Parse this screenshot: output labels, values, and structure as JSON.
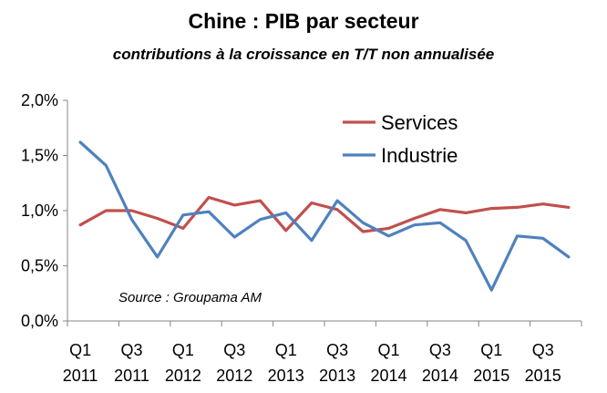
{
  "chart_data": {
    "type": "line",
    "title": "Chine : PIB par secteur",
    "subtitle": "contributions à la croissance en T/T non annualisée",
    "annotation": "Source : Groupama AM",
    "ylim": [
      0,
      2.0
    ],
    "yticks": [
      {
        "value": 0.0,
        "label": "0,0%"
      },
      {
        "value": 0.5,
        "label": "0,5%"
      },
      {
        "value": 1.0,
        "label": "1,0%"
      },
      {
        "value": 1.5,
        "label": "1,5%"
      },
      {
        "value": 2.0,
        "label": "2,0%"
      }
    ],
    "x": [
      "Q1 2011",
      "Q2 2011",
      "Q3 2011",
      "Q4 2011",
      "Q1 2012",
      "Q2 2012",
      "Q3 2012",
      "Q4 2012",
      "Q1 2013",
      "Q2 2013",
      "Q3 2013",
      "Q4 2013",
      "Q1 2014",
      "Q2 2014",
      "Q3 2014",
      "Q4 2014",
      "Q1 2015",
      "Q2 2015",
      "Q3 2015",
      "Q4 2015"
    ],
    "xtick_labels": [
      {
        "index": 0,
        "top": "Q1",
        "bottom": "2011"
      },
      {
        "index": 2,
        "top": "Q3",
        "bottom": "2011"
      },
      {
        "index": 4,
        "top": "Q1",
        "bottom": "2012"
      },
      {
        "index": 6,
        "top": "Q3",
        "bottom": "2012"
      },
      {
        "index": 8,
        "top": "Q1",
        "bottom": "2013"
      },
      {
        "index": 10,
        "top": "Q3",
        "bottom": "2013"
      },
      {
        "index": 12,
        "top": "Q1",
        "bottom": "2014"
      },
      {
        "index": 14,
        "top": "Q3",
        "bottom": "2014"
      },
      {
        "index": 16,
        "top": "Q1",
        "bottom": "2015"
      },
      {
        "index": 18,
        "top": "Q3",
        "bottom": "2015"
      }
    ],
    "legend_position": "top-right",
    "series": [
      {
        "name": "Services",
        "color": "#C0504D",
        "values": [
          0.87,
          1.0,
          1.0,
          0.93,
          0.84,
          1.12,
          1.05,
          1.09,
          0.82,
          1.07,
          1.01,
          0.81,
          0.84,
          0.93,
          1.01,
          0.98,
          1.02,
          1.03,
          1.06,
          1.03
        ]
      },
      {
        "name": "Industrie",
        "color": "#4F81BD",
        "values": [
          1.62,
          1.41,
          0.92,
          0.58,
          0.96,
          0.99,
          0.76,
          0.92,
          0.98,
          0.73,
          1.09,
          0.89,
          0.77,
          0.87,
          0.89,
          0.73,
          0.28,
          0.77,
          0.75,
          0.58
        ]
      }
    ]
  }
}
